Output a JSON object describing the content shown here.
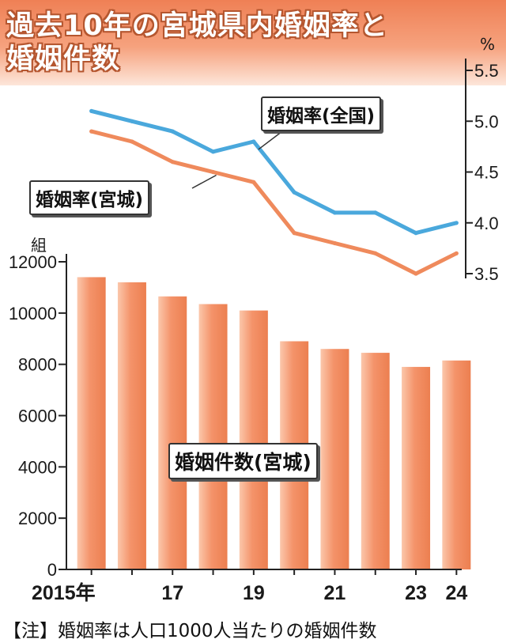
{
  "title": {
    "line1": "過去10年の宮城県内婚姻率と",
    "line2": "婚姻件数"
  },
  "note": "【注】婚姻率は人口1000人当たりの婚姻件数",
  "colors": {
    "header": "#ef8055",
    "bar": "#f4936a",
    "national_line": "#4aa8dc",
    "miyagi_line": "#ef8a5c"
  },
  "chart_data": {
    "type": "bar",
    "x": [
      2015,
      2016,
      2017,
      2018,
      2019,
      2020,
      2021,
      2022,
      2023,
      2024
    ],
    "xtick_labels": [
      {
        "x": 2015,
        "label": "2015年"
      },
      {
        "x": 2017,
        "label": "17"
      },
      {
        "x": 2019,
        "label": "19"
      },
      {
        "x": 2021,
        "label": "21"
      },
      {
        "x": 2023,
        "label": "23"
      },
      {
        "x": 2024,
        "label": "24"
      }
    ],
    "bars": {
      "name": "婚姻件数(宮城)",
      "unit": "組",
      "values": [
        11400,
        11200,
        10650,
        10350,
        10100,
        8900,
        8600,
        8450,
        7900,
        8150
      ],
      "ylim": [
        0,
        12000
      ],
      "yticks": [
        0,
        2000,
        4000,
        6000,
        8000,
        10000,
        12000
      ]
    },
    "lines": {
      "unit": "%",
      "ylim": [
        3.5,
        5.5
      ],
      "yticks": [
        3.5,
        4.0,
        4.5,
        5.0,
        5.5
      ],
      "series": [
        {
          "name": "婚姻率(全国)",
          "values": [
            5.1,
            5.0,
            4.9,
            4.7,
            4.8,
            4.3,
            4.1,
            4.1,
            3.9,
            4.0
          ]
        },
        {
          "name": "婚姻率(宮城)",
          "values": [
            4.9,
            4.8,
            4.6,
            4.5,
            4.4,
            3.9,
            3.8,
            3.7,
            3.5,
            3.7
          ]
        }
      ]
    }
  }
}
